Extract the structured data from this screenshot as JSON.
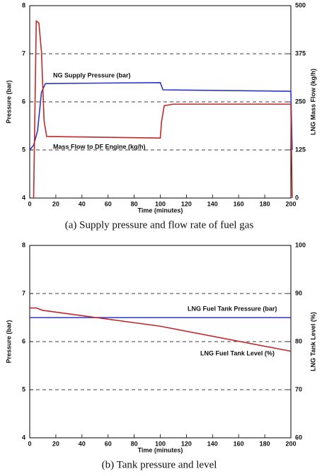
{
  "chart_data": [
    {
      "type": "line",
      "caption": "(a) Supply pressure and flow rate of fuel gas",
      "xlabel": "Time (minutes)",
      "ylabel": "Pressure (bar)",
      "y2label": "LNG Mass Flow (kg/h)",
      "xlim": [
        0,
        200
      ],
      "xticks": [
        0,
        20,
        40,
        60,
        80,
        100,
        120,
        140,
        160,
        180,
        200
      ],
      "ylim": [
        4,
        8
      ],
      "yticks": [
        4,
        5,
        6,
        7,
        8
      ],
      "y2lim": [
        0,
        500
      ],
      "y2ticks": [
        0,
        125,
        250,
        375,
        500
      ],
      "grid": true,
      "series": [
        {
          "name": "NG Supply Pressure (bar)",
          "color": "#2b35c8",
          "x": [
            0,
            3,
            6,
            9,
            12,
            100,
            102,
            200,
            201
          ],
          "values": [
            5.0,
            5.1,
            5.4,
            6.2,
            6.38,
            6.4,
            6.25,
            6.22,
            5.0
          ]
        },
        {
          "name": "Mass Flow to DF Engine (kg/h)",
          "color": "#c0282a",
          "axis": "y2",
          "x": [
            3,
            5,
            7,
            9,
            11,
            13,
            100,
            101,
            103,
            110,
            200,
            201
          ],
          "values": [
            0,
            460,
            455,
            380,
            200,
            160,
            156,
            200,
            240,
            244,
            244,
            0
          ]
        }
      ]
    },
    {
      "type": "line",
      "caption": "(b) Tank pressure and level",
      "xlabel": "Time (minutes)",
      "ylabel": "Pressure (bar)",
      "y2label": "LNG Tank Level (%)",
      "xlim": [
        0,
        200
      ],
      "xticks": [
        0,
        20,
        40,
        60,
        80,
        100,
        120,
        140,
        160,
        180,
        200
      ],
      "ylim": [
        4,
        8
      ],
      "yticks": [
        4,
        5,
        6,
        7,
        8
      ],
      "y2lim": [
        60,
        100
      ],
      "y2ticks": [
        60,
        70,
        80,
        90,
        100
      ],
      "grid": true,
      "series": [
        {
          "name": "LNG Fuel Tank Pressure (bar)",
          "color": "#2b35c8",
          "x": [
            0,
            200
          ],
          "values": [
            6.5,
            6.5
          ]
        },
        {
          "name": "LNG Fuel Tank Level (%)",
          "color": "#c0282a",
          "axis": "y2",
          "x": [
            0,
            5,
            10,
            100,
            200
          ],
          "values": [
            87,
            87,
            86.5,
            83.2,
            78
          ]
        }
      ]
    }
  ]
}
